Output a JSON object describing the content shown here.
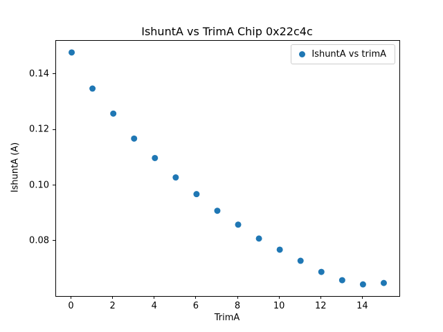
{
  "chart_data": {
    "type": "scatter",
    "title": "IshuntA vs TrimA Chip 0x22c4c",
    "xlabel": "TrimA",
    "ylabel": "IshuntA (A)",
    "legend": {
      "label": "IshuntA vs trimA",
      "position": "upper right"
    },
    "marker_color": "#1f77b4",
    "grid": false,
    "x": [
      0,
      1,
      2,
      3,
      4,
      5,
      6,
      7,
      8,
      9,
      10,
      11,
      12,
      13,
      14,
      15
    ],
    "y": [
      0.148,
      0.135,
      0.126,
      0.117,
      0.11,
      0.103,
      0.097,
      0.091,
      0.086,
      0.081,
      0.077,
      0.073,
      0.069,
      0.066,
      0.0645,
      0.065
    ],
    "xlim": [
      -0.75,
      15.75
    ],
    "ylim": [
      0.0603,
      0.1522
    ],
    "xticks": [
      0,
      2,
      4,
      6,
      8,
      10,
      12,
      14
    ],
    "xtick_labels": [
      "0",
      "2",
      "4",
      "6",
      "8",
      "10",
      "12",
      "14"
    ],
    "yticks": [
      0.08,
      0.1,
      0.12,
      0.14
    ],
    "ytick_labels": [
      "0.08",
      "0.10",
      "0.12",
      "0.14"
    ]
  }
}
